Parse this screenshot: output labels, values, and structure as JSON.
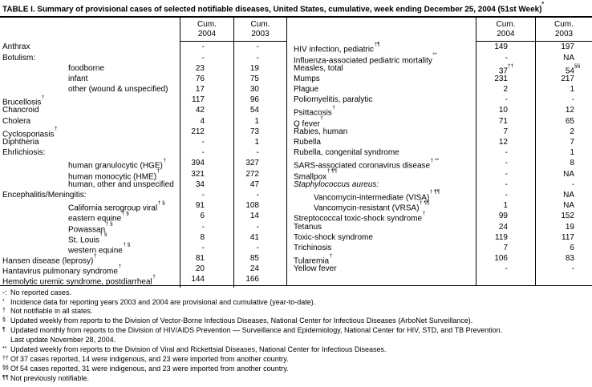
{
  "title": "TABLE I. Summary of provisional cases of selected notifiable diseases, United States, cumulative, week ending December 25, 2004 (51st Week)",
  "title_sup": "*",
  "header": {
    "cum": "Cum.",
    "y2004": "2004",
    "y2003": "2003"
  },
  "left_rows": [
    {
      "label": "Anthrax",
      "v04": "-",
      "v03": "-"
    },
    {
      "label": "Botulism:",
      "v04": "-",
      "v03": "-"
    },
    {
      "label": "foodborne",
      "indent": true,
      "v04": "23",
      "v03": "19"
    },
    {
      "label": "infant",
      "indent": true,
      "v04": "76",
      "v03": "75"
    },
    {
      "label": "other (wound & unspecified)",
      "indent": true,
      "v04": "17",
      "v03": "30"
    },
    {
      "label": "Brucellosis",
      "sup": "†",
      "v04": "117",
      "v03": "96"
    },
    {
      "label": "Chancroid",
      "v04": "42",
      "v03": "54"
    },
    {
      "label": "Cholera",
      "v04": "4",
      "v03": "1"
    },
    {
      "label": "Cyclosporiasis",
      "sup": "†",
      "v04": "212",
      "v03": "73"
    },
    {
      "label": "Diphtheria",
      "v04": "-",
      "v03": "1"
    },
    {
      "label": "Ehrlichiosis:",
      "v04": "-",
      "v03": "-"
    },
    {
      "label": "human granulocytic (HGE)",
      "sup": "†",
      "indent": true,
      "v04": "394",
      "v03": "327"
    },
    {
      "label": "human monocytic (HME)",
      "sup": "†",
      "indent": true,
      "v04": "321",
      "v03": "272"
    },
    {
      "label": "human, other and unspecified",
      "indent": true,
      "v04": "34",
      "v03": "47"
    },
    {
      "label": "Encephalitis/Meningitis:",
      "v04": "-",
      "v03": "-"
    },
    {
      "label": "California serogroup viral",
      "sup": "† §",
      "indent": true,
      "v04": "91",
      "v03": "108"
    },
    {
      "label": "eastern equine",
      "sup": "† §",
      "indent": true,
      "v04": "6",
      "v03": "14"
    },
    {
      "label": "Powassan",
      "sup": "† §",
      "indent": true,
      "v04": "-",
      "v03": "-"
    },
    {
      "label": "St. Louis",
      "sup": "† §",
      "indent": true,
      "v04": "8",
      "v03": "41"
    },
    {
      "label": "western equine",
      "sup": "† §",
      "indent": true,
      "v04": "-",
      "v03": "-"
    },
    {
      "label": "Hansen disease (leprosy)",
      "sup": "†",
      "v04": "81",
      "v03": "85"
    },
    {
      "label": "Hantavirus pulmonary syndrome",
      "sup": "†",
      "v04": "20",
      "v03": "24"
    },
    {
      "label": "Hemolytic uremic syndrome, postdiarrheal",
      "sup": "†",
      "v04": "144",
      "v03": "166"
    }
  ],
  "right_rows": [
    {
      "label": "HIV infection, pediatric",
      "sup": "†¶",
      "v04": "149",
      "v03": "197"
    },
    {
      "label": "Influenza-associated pediatric mortality",
      "sup": "**",
      "v04": "-",
      "v03": "NA"
    },
    {
      "label": "Measles, total",
      "v04": "37",
      "s04": "††",
      "v03": "54",
      "s03": "§§"
    },
    {
      "label": "Mumps",
      "v04": "231",
      "v03": "217"
    },
    {
      "label": "Plague",
      "v04": "2",
      "v03": "1"
    },
    {
      "label": "Poliomyelitis, paralytic",
      "v04": "-",
      "v03": "-"
    },
    {
      "label": "Psittacosis",
      "sup": "†",
      "v04": "10",
      "v03": "12"
    },
    {
      "label": "Q fever",
      "sup": "†",
      "v04": "71",
      "v03": "65"
    },
    {
      "label": "Rabies, human",
      "v04": "7",
      "v03": "2"
    },
    {
      "label": "Rubella",
      "v04": "12",
      "v03": "7"
    },
    {
      "label": "Rubella, congenital syndrome",
      "v04": "-",
      "v03": "1"
    },
    {
      "label": "SARS-associated coronavirus disease",
      "sup": "† **",
      "v04": "-",
      "v03": "8"
    },
    {
      "label": "Smallpox",
      "sup": "† ¶¶",
      "v04": "-",
      "v03": "NA"
    },
    {
      "label": "Staphylococcus aureus:",
      "italic": true,
      "v04": "-",
      "v03": "-"
    },
    {
      "label": "Vancomycin-intermediate (VISA)",
      "sup": "† ¶¶",
      "indent": true,
      "v04": "-",
      "v03": "NA"
    },
    {
      "label": "Vancomycin-resistant (VRSA)",
      "sup": "† ¶¶",
      "indent": true,
      "v04": "1",
      "v03": "NA"
    },
    {
      "label": "Streptococcal toxic-shock syndrome",
      "sup": "†",
      "v04": "99",
      "v03": "152"
    },
    {
      "label": "Tetanus",
      "v04": "24",
      "v03": "19"
    },
    {
      "label": "Toxic-shock syndrome",
      "v04": "119",
      "v03": "117"
    },
    {
      "label": "Trichinosis",
      "v04": "7",
      "v03": "6"
    },
    {
      "label": "Tularemia",
      "sup": "†",
      "v04": "106",
      "v03": "83"
    },
    {
      "label": "Yellow fever",
      "v04": "-",
      "v03": "-"
    }
  ],
  "footnotes": [
    {
      "marker": "-:",
      "raised": false,
      "text": "No reported cases."
    },
    {
      "marker": "*",
      "raised": true,
      "text": "Incidence data for reporting years 2003 and 2004 are provisional and cumulative (year-to-date)."
    },
    {
      "marker": "†",
      "raised": true,
      "text": "Not notifiable in all states."
    },
    {
      "marker": "§",
      "raised": true,
      "text": "Updated weekly from reports to the Division of Vector-Borne Infectious Diseases, National Center for Infectious Diseases (ArboNet Surveillance)."
    },
    {
      "marker": "¶",
      "raised": true,
      "text": "Updated monthly from reports to the Division of HIV/AIDS Prevention — Surveillance and Epidemiology, National Center for HIV, STD, and TB Prevention."
    },
    {
      "marker": "",
      "raised": false,
      "text": "Last update November 28, 2004."
    },
    {
      "marker": "**",
      "raised": true,
      "text": "Updated weekly from reports to the Division of Viral and Rickettsial Diseases, National Center for Infectious Diseases."
    },
    {
      "marker": "††",
      "raised": true,
      "text": "Of 37 cases reported, 14 were indigenous, and 23 were imported from another country."
    },
    {
      "marker": "§§",
      "raised": true,
      "text": "Of 54 cases reported, 31 were indigenous, and 23 were imported from another country."
    },
    {
      "marker": "¶¶",
      "raised": true,
      "text": "Not previously notifiable."
    }
  ]
}
